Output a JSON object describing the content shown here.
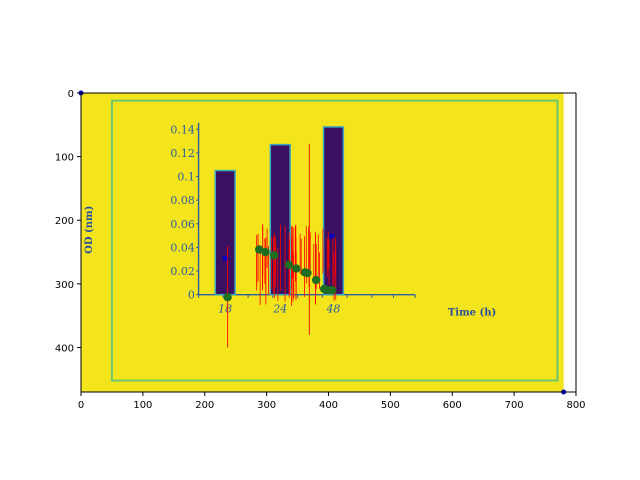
{
  "chart_data": {
    "type": "image",
    "xlim": [
      0,
      800
    ],
    "ylim": [
      0,
      470
    ],
    "x_ticks": [
      "0",
      "100",
      "200",
      "300",
      "400",
      "500",
      "600",
      "700",
      "800"
    ],
    "y_ticks": [
      "0",
      "100",
      "200",
      "300",
      "400"
    ],
    "colors": {
      "background": "#f4e41c",
      "frame": "#6cc66c",
      "bar": "#3a1060",
      "bar_edge": "#38a7c0",
      "dots": "#1f6e1f",
      "error": "#ff0000",
      "markers": "#0000cc",
      "inner_text": "#2a5fa0"
    },
    "embedded_figure": {
      "ylabel": "OD (nm)",
      "xlabel": "Time (h)",
      "y_ticks": [
        "0.14",
        "0.12",
        "0.1",
        "0.08",
        "0.06",
        "0.04",
        "0.02",
        "0"
      ],
      "x_ticks": [
        "18",
        "24",
        "48"
      ],
      "bars": [
        {
          "category": "18",
          "value": 0.105
        },
        {
          "category": "24",
          "value": 0.127
        },
        {
          "category": "48",
          "value": 0.142
        }
      ]
    },
    "green_points": [
      {
        "x": 237,
        "y": 321
      },
      {
        "x": 288,
        "y": 246
      },
      {
        "x": 298,
        "y": 250
      },
      {
        "x": 312,
        "y": 255
      },
      {
        "x": 336,
        "y": 270
      },
      {
        "x": 348,
        "y": 276
      },
      {
        "x": 362,
        "y": 282
      },
      {
        "x": 366,
        "y": 283
      },
      {
        "x": 380,
        "y": 294
      },
      {
        "x": 393,
        "y": 308
      },
      {
        "x": 400,
        "y": 310
      },
      {
        "x": 406,
        "y": 310
      }
    ],
    "blue_points": [
      {
        "x": 0,
        "y": 0
      },
      {
        "x": 233,
        "y": 260
      },
      {
        "x": 405,
        "y": 225
      },
      {
        "x": 780,
        "y": 470
      }
    ]
  }
}
